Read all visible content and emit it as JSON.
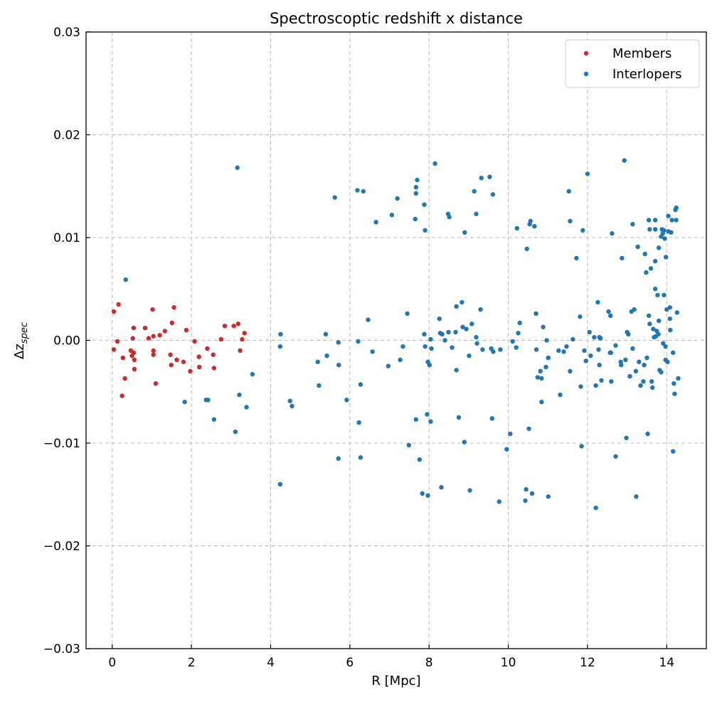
{
  "chart_data": {
    "type": "scatter",
    "title": "Spectroscoptic redshift x distance",
    "xlabel": "R [Mpc]",
    "ylabel": {
      "main": "Δz",
      "sub": "spec"
    },
    "xlim": [
      -0.66,
      15.0
    ],
    "ylim": [
      -0.03,
      0.03
    ],
    "xticks": [
      0,
      2,
      4,
      6,
      8,
      10,
      12,
      14
    ],
    "xtick_labels": [
      "0",
      "2",
      "4",
      "6",
      "8",
      "10",
      "12",
      "14"
    ],
    "yticks": [
      -0.03,
      -0.02,
      -0.01,
      0.0,
      0.01,
      0.02,
      0.03
    ],
    "ytick_labels": [
      "−0.03",
      "−0.02",
      "−0.01",
      "0.00",
      "0.01",
      "0.02",
      "0.03"
    ],
    "grid": true,
    "legend_position": "top-right",
    "series": [
      {
        "name": "Members",
        "color": "#d62728",
        "points": [
          [
            0.04,
            0.0028
          ],
          [
            0.16,
            0.0035
          ],
          [
            0.04,
            -0.0009
          ],
          [
            0.13,
            -0.0001
          ],
          [
            0.27,
            -0.0017
          ],
          [
            0.25,
            -0.0054
          ],
          [
            0.32,
            -0.0037
          ],
          [
            0.54,
            0.0012
          ],
          [
            0.52,
            0.0002
          ],
          [
            0.47,
            -0.001
          ],
          [
            0.54,
            -0.0012
          ],
          [
            0.5,
            -0.0015
          ],
          [
            0.56,
            -0.0019
          ],
          [
            0.56,
            -0.0028
          ],
          [
            0.83,
            0.0012
          ],
          [
            0.92,
            0.0002
          ],
          [
            1.02,
            0.003
          ],
          [
            1.04,
            0.0004
          ],
          [
            1.04,
            -0.001
          ],
          [
            1.04,
            -0.0014
          ],
          [
            1.1,
            -0.0042
          ],
          [
            1.2,
            0.0005
          ],
          [
            1.33,
            0.0009
          ],
          [
            1.47,
            -0.0014
          ],
          [
            1.49,
            -0.0024
          ],
          [
            1.51,
            0.0017
          ],
          [
            1.56,
            0.0032
          ],
          [
            1.63,
            -0.0019
          ],
          [
            1.8,
            -0.0021
          ],
          [
            1.87,
            0.001
          ],
          [
            1.97,
            -0.003
          ],
          [
            2.08,
            -0.0001
          ],
          [
            2.19,
            -0.0016
          ],
          [
            2.2,
            -0.0026
          ],
          [
            2.4,
            -0.0008
          ],
          [
            2.55,
            -0.0014
          ],
          [
            2.57,
            -0.0027
          ],
          [
            2.75,
            0.0001
          ],
          [
            2.84,
            0.0014
          ],
          [
            3.07,
            0.0014
          ],
          [
            3.18,
            0.0016
          ],
          [
            3.23,
            -0.001
          ],
          [
            3.28,
            0.0001
          ],
          [
            3.34,
            0.0007
          ]
        ]
      },
      {
        "name": "Interlopers",
        "color": "#1f77b4",
        "points": [
          [
            0.34,
            0.0059
          ],
          [
            1.83,
            -0.006
          ],
          [
            2.37,
            -0.0058
          ],
          [
            2.42,
            -0.0058
          ],
          [
            2.57,
            -0.0077
          ],
          [
            3.11,
            -0.0089
          ],
          [
            3.16,
            0.0168
          ],
          [
            3.21,
            -0.0053
          ],
          [
            3.39,
            -0.0065
          ],
          [
            3.54,
            -0.0033
          ],
          [
            4.25,
            0.0006
          ],
          [
            4.24,
            -0.0006
          ],
          [
            4.24,
            -0.014
          ],
          [
            4.49,
            -0.0059
          ],
          [
            4.54,
            -0.0064
          ],
          [
            5.19,
            -0.0021
          ],
          [
            5.22,
            -0.0044
          ],
          [
            5.39,
            0.0006
          ],
          [
            5.42,
            -0.0015
          ],
          [
            5.62,
            0.0139
          ],
          [
            5.71,
            -0.0002
          ],
          [
            5.72,
            -0.0024
          ],
          [
            5.71,
            -0.0115
          ],
          [
            5.92,
            -0.0058
          ],
          [
            6.19,
            0.0146
          ],
          [
            6.21,
            -0.0001
          ],
          [
            6.23,
            -0.008
          ],
          [
            6.27,
            -0.0043
          ],
          [
            6.27,
            -0.0114
          ],
          [
            6.34,
            0.0145
          ],
          [
            6.46,
            0.002
          ],
          [
            6.57,
            -0.0011
          ],
          [
            6.66,
            0.0115
          ],
          [
            6.97,
            -0.0025
          ],
          [
            7.06,
            0.0122
          ],
          [
            7.2,
            0.0138
          ],
          [
            7.27,
            -0.0019
          ],
          [
            7.34,
            -0.0006
          ],
          [
            7.45,
            0.0026
          ],
          [
            7.49,
            -0.0102
          ],
          [
            7.65,
            0.0118
          ],
          [
            7.67,
            0.0149
          ],
          [
            7.67,
            0.0143
          ],
          [
            7.7,
            0.0156
          ],
          [
            7.67,
            -0.0077
          ],
          [
            7.76,
            -0.0116
          ],
          [
            7.83,
            -0.0149
          ],
          [
            7.88,
            0.0132
          ],
          [
            7.9,
            0.0107
          ],
          [
            7.88,
            0.0006
          ],
          [
            7.9,
            -0.0006
          ],
          [
            7.95,
            -0.0072
          ],
          [
            7.97,
            -0.0151
          ],
          [
            7.97,
            -0.0021
          ],
          [
            8.01,
            -0.0024
          ],
          [
            8.04,
            0.0001
          ],
          [
            8.04,
            -0.0079
          ],
          [
            8.06,
            -0.0008
          ],
          [
            8.15,
            0.0172
          ],
          [
            8.26,
            0.0021
          ],
          [
            8.28,
            0.0007
          ],
          [
            8.33,
            0.0006
          ],
          [
            8.31,
            -0.0143
          ],
          [
            8.4,
            0.0
          ],
          [
            8.48,
            0.0123
          ],
          [
            8.51,
            0.012
          ],
          [
            8.49,
            0.0008
          ],
          [
            8.58,
            -0.0007
          ],
          [
            8.69,
            0.0033
          ],
          [
            8.67,
            0.0008
          ],
          [
            8.69,
            -0.0029
          ],
          [
            8.75,
            -0.0075
          ],
          [
            8.83,
            0.0037
          ],
          [
            8.85,
            0.0013
          ],
          [
            8.9,
            0.0105
          ],
          [
            8.89,
            -0.0099
          ],
          [
            8.94,
            0.0011
          ],
          [
            9.01,
            -0.0015
          ],
          [
            9.03,
            -0.0146
          ],
          [
            9.08,
            0.0016
          ],
          [
            9.14,
            0.0145
          ],
          [
            9.19,
            0.0123
          ],
          [
            9.19,
            0.0003
          ],
          [
            9.21,
            -0.0003
          ],
          [
            9.3,
            0.003
          ],
          [
            9.32,
            0.0158
          ],
          [
            9.35,
            -0.0009
          ],
          [
            9.53,
            0.0159
          ],
          [
            9.57,
            -0.0008
          ],
          [
            9.59,
            -0.0076
          ],
          [
            9.61,
            0.0142
          ],
          [
            9.62,
            -0.0011
          ],
          [
            9.77,
            -0.0157
          ],
          [
            9.8,
            -0.0009
          ],
          [
            9.96,
            -0.0106
          ],
          [
            10.05,
            -0.0091
          ],
          [
            10.11,
            -0.0001
          ],
          [
            10.2,
            -0.0007
          ],
          [
            10.22,
            0.0109
          ],
          [
            10.25,
            0.0007
          ],
          [
            10.29,
            0.0017
          ],
          [
            10.43,
            -0.0156
          ],
          [
            10.45,
            -0.0145
          ],
          [
            10.47,
            0.0089
          ],
          [
            10.52,
            -0.0086
          ],
          [
            10.54,
            0.0113
          ],
          [
            10.56,
            0.0116
          ],
          [
            10.6,
            -0.0149
          ],
          [
            10.66,
            0.0111
          ],
          [
            10.7,
            0.0026
          ],
          [
            10.71,
            -0.0009
          ],
          [
            10.74,
            -0.0036
          ],
          [
            10.81,
            -0.003
          ],
          [
            10.84,
            -0.0037
          ],
          [
            10.84,
            -0.006
          ],
          [
            10.88,
            0.0013
          ],
          [
            10.95,
            -0.0026
          ],
          [
            10.97,
            0.0
          ],
          [
            11.01,
            -0.0017
          ],
          [
            11.01,
            -0.0152
          ],
          [
            11.27,
            -0.001
          ],
          [
            11.31,
            -0.0053
          ],
          [
            11.4,
            -0.0011
          ],
          [
            11.47,
            -0.0006
          ],
          [
            11.53,
            0.0145
          ],
          [
            11.56,
            0.0116
          ],
          [
            11.56,
            -0.003
          ],
          [
            11.63,
            0.0001
          ],
          [
            11.72,
            0.008
          ],
          [
            11.81,
            0.0023
          ],
          [
            11.83,
            -0.0045
          ],
          [
            11.85,
            -0.0103
          ],
          [
            11.88,
            0.0107
          ],
          [
            11.92,
            -0.001
          ],
          [
            11.96,
            -0.002
          ],
          [
            12.0,
            0.0162
          ],
          [
            12.05,
            0.0008
          ],
          [
            12.08,
            -0.0015
          ],
          [
            12.17,
            0.0003
          ],
          [
            12.21,
            -0.0044
          ],
          [
            12.21,
            -0.0163
          ],
          [
            12.26,
            0.0037
          ],
          [
            12.28,
            -0.0009
          ],
          [
            12.3,
            0.0003
          ],
          [
            12.3,
            -0.0024
          ],
          [
            12.33,
            0.0002
          ],
          [
            12.35,
            -0.0039
          ],
          [
            12.53,
            0.0028
          ],
          [
            12.57,
            -0.0012
          ],
          [
            12.58,
            0.0024
          ],
          [
            12.59,
            -0.0012
          ],
          [
            12.6,
            -0.004
          ],
          [
            12.62,
            0.0104
          ],
          [
            12.71,
            -0.0005
          ],
          [
            12.71,
            -0.0113
          ],
          [
            12.84,
            -0.0021
          ],
          [
            12.85,
            -0.0024
          ],
          [
            12.87,
            0.008
          ],
          [
            12.93,
            0.0175
          ],
          [
            12.96,
            -0.0019
          ],
          [
            12.98,
            -0.0095
          ],
          [
            13.0,
            0.0008
          ],
          [
            13.03,
            0.0006
          ],
          [
            13.07,
            -0.0035
          ],
          [
            13.11,
            0.0028
          ],
          [
            13.14,
            0.0113
          ],
          [
            13.14,
            -0.0008
          ],
          [
            13.18,
            0.003
          ],
          [
            13.22,
            -0.003
          ],
          [
            13.23,
            -0.0152
          ],
          [
            13.27,
            0.0091
          ],
          [
            13.3,
            -0.0021
          ],
          [
            13.34,
            -0.0044
          ],
          [
            13.41,
            -0.004
          ],
          [
            13.43,
            -0.0024
          ],
          [
            13.45,
            0.0084
          ],
          [
            13.48,
            0.0066
          ],
          [
            13.5,
            -0.0017
          ],
          [
            13.52,
            -0.0091
          ],
          [
            13.55,
            0.0117
          ],
          [
            13.55,
            0.0024
          ],
          [
            13.57,
            0.0108
          ],
          [
            13.57,
            0.0016
          ],
          [
            13.6,
            0.007
          ],
          [
            13.62,
            -0.004
          ],
          [
            13.64,
            -0.0046
          ],
          [
            13.66,
            0.0011
          ],
          [
            13.68,
            0.0003
          ],
          [
            13.71,
            0.0117
          ],
          [
            13.71,
            0.0108
          ],
          [
            13.71,
            0.005
          ],
          [
            13.71,
            0.0077
          ],
          [
            13.73,
            0.0004
          ],
          [
            13.75,
            0.0009
          ],
          [
            13.77,
            0.0044
          ],
          [
            13.79,
            0.0006
          ],
          [
            13.8,
            0.0019
          ],
          [
            13.8,
            0.009
          ],
          [
            13.82,
            -0.0029
          ],
          [
            13.86,
            0.0101
          ],
          [
            13.86,
            -0.0031
          ],
          [
            13.88,
            0.0108
          ],
          [
            13.9,
            0.0104
          ],
          [
            13.91,
            -0.0003
          ],
          [
            13.93,
            0.0107
          ],
          [
            13.93,
            0.0044
          ],
          [
            13.95,
            0.0099
          ],
          [
            13.97,
            -0.0006
          ],
          [
            13.97,
            -0.0019
          ],
          [
            13.98,
            0.0081
          ],
          [
            14.0,
            0.003
          ],
          [
            14.02,
            -0.0021
          ],
          [
            14.04,
            0.0121
          ],
          [
            14.04,
            0.0106
          ],
          [
            14.08,
            0.0032
          ],
          [
            14.08,
            0.0021
          ],
          [
            14.09,
            0.001
          ],
          [
            14.11,
            0.0105
          ],
          [
            14.13,
            0.0117
          ],
          [
            14.16,
            -0.0012
          ],
          [
            14.16,
            -0.0108
          ],
          [
            14.18,
            -0.0042
          ],
          [
            14.2,
            -0.0052
          ],
          [
            14.22,
            0.0127
          ],
          [
            14.24,
            0.0129
          ],
          [
            14.24,
            0.0117
          ],
          [
            14.26,
            0.0027
          ],
          [
            14.29,
            -0.0037
          ]
        ]
      }
    ]
  }
}
